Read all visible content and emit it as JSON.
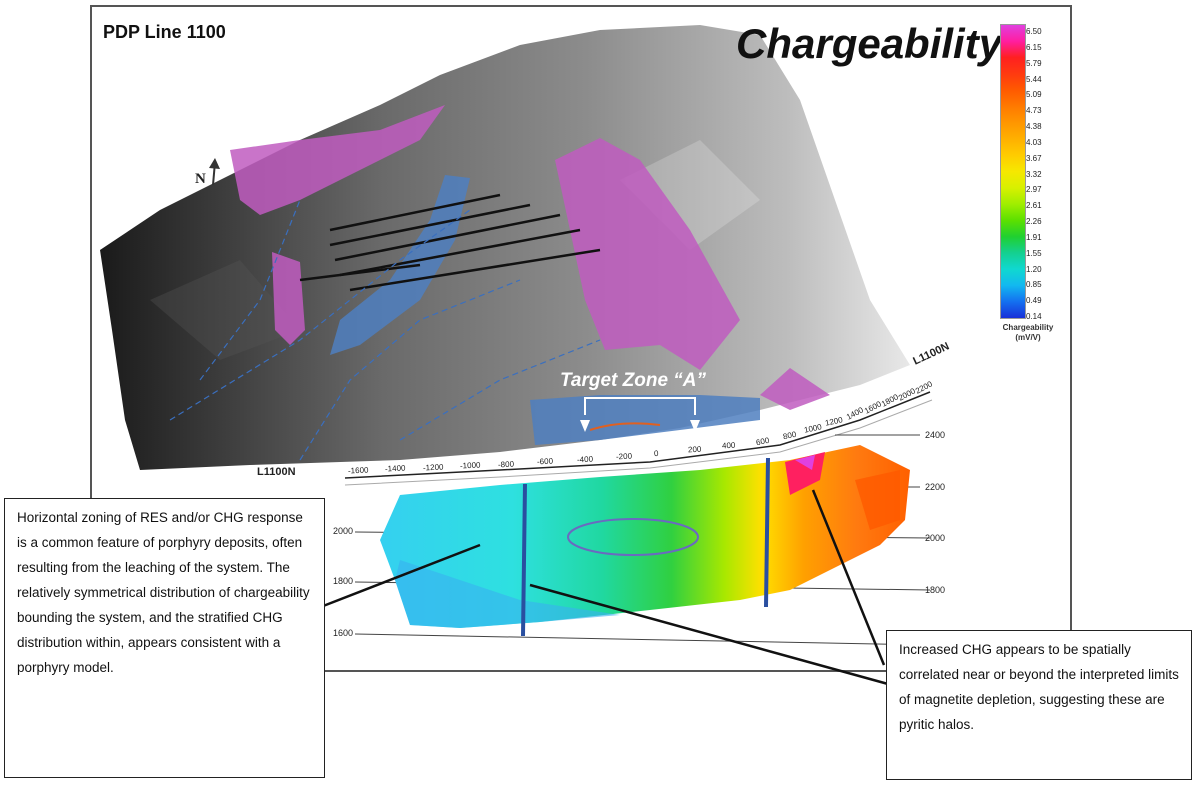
{
  "titles": {
    "line_label": "PDP Line 1100",
    "main_title": "Chargeability"
  },
  "colorbar": {
    "ticks": [
      "6.50",
      "6.15",
      "5.79",
      "5.44",
      "5.09",
      "4.73",
      "4.38",
      "4.03",
      "3.67",
      "3.32",
      "2.97",
      "2.61",
      "2.26",
      "1.91",
      "1.55",
      "1.20",
      "0.85",
      "0.49",
      "0.14"
    ],
    "label_line1": "Chargeability",
    "label_line2": "(mV/V)",
    "colors": [
      "#e040e0",
      "#ff1ea0",
      "#ff2020",
      "#ff3a10",
      "#ff5a00",
      "#ff7a00",
      "#ff9600",
      "#ffb000",
      "#ffcc00",
      "#f6e800",
      "#d8f000",
      "#a0ee00",
      "#5ce000",
      "#20d030",
      "#14d090",
      "#10d8d0",
      "#12b8f0",
      "#1470f0",
      "#1830d8"
    ]
  },
  "map": {
    "north_label": "N",
    "target_zone": "Target Zone “A”",
    "line_label_left": "L1100N",
    "line_label_right": "L1100N",
    "station_labels": [
      "-1600",
      "-1400",
      "-1200",
      "-1000",
      "-800",
      "-600",
      "-400",
      "-200",
      "0",
      "200",
      "400",
      "600",
      "800",
      "1000",
      "1200",
      "1400",
      "1600",
      "1800",
      "2000",
      "2200"
    ],
    "elevations_right": [
      "2400",
      "2200",
      "2000",
      "1800"
    ],
    "elevations_left": [
      "2000",
      "1800",
      "1600"
    ]
  },
  "callouts": {
    "left": "Horizontal zoning of RES and/or CHG response is a common feature of porphyry deposits, often resulting from the leaching of the system. The relatively symmetrical distribution of chargeability bounding the system, and the stratified CHG distribution within, appears consistent with a porphyry model.",
    "right": "Increased CHG appears to be spatially correlated near or beyond the interpreted limits of magnetite depletion, suggesting these are pyritic halos."
  }
}
